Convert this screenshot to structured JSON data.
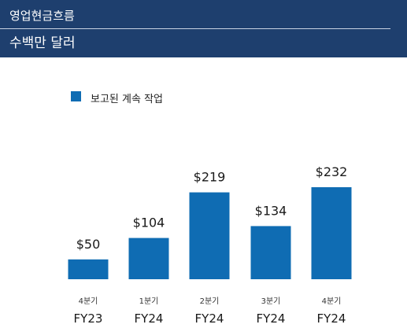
{
  "header": {
    "title": "영업현금흐름",
    "subtitle": "수백만 달러"
  },
  "colors": {
    "header_bg": "#1e3f6e",
    "bar": "#0f6cb3"
  },
  "chart_data": {
    "type": "bar",
    "title": "영업현금흐름",
    "subtitle": "수백만 달러",
    "legend": [
      {
        "name": "보고된 계속 작업",
        "color": "#0f6cb3"
      }
    ],
    "legend_position": "top-left",
    "grid": false,
    "categories": [
      {
        "quarter": "4분기",
        "year": "FY23"
      },
      {
        "quarter": "1분기",
        "year": "FY24"
      },
      {
        "quarter": "2분기",
        "year": "FY24"
      },
      {
        "quarter": "3분기",
        "year": "FY24"
      },
      {
        "quarter": "4분기",
        "year": "FY24"
      }
    ],
    "series": [
      {
        "name": "보고된 계속 작업",
        "values": [
          50,
          104,
          219,
          134,
          232
        ]
      }
    ],
    "value_labels": [
      "$50",
      "$104",
      "$219",
      "$134",
      "$232"
    ],
    "ylim": [
      0,
      232
    ]
  }
}
